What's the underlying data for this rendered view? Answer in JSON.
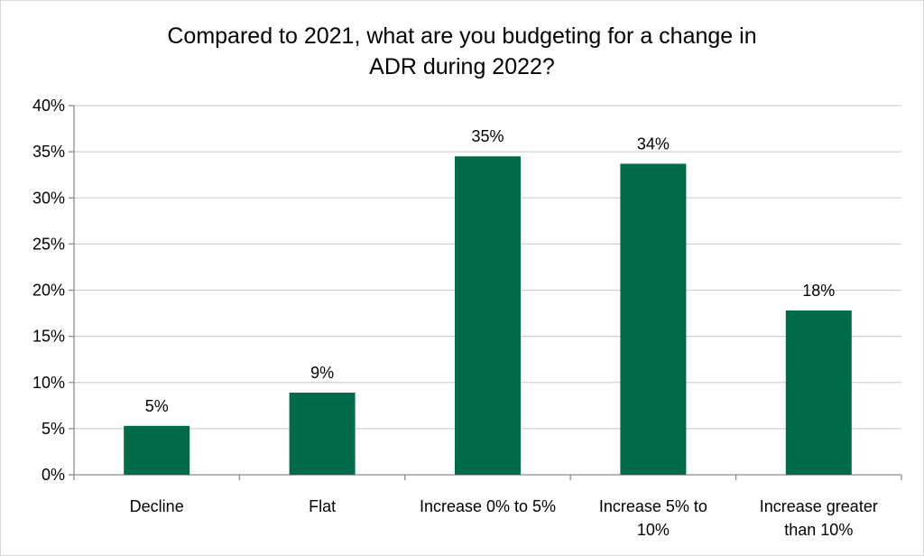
{
  "chart_data": {
    "type": "bar",
    "title": "Compared to 2021, what are you budgeting for a change in\nADR during 2022?",
    "categories": [
      "Decline",
      "Flat",
      "Increase 0% to 5%",
      "Increase 5% to 10%",
      "Increase greater than 10%"
    ],
    "category_lines": [
      [
        "Decline"
      ],
      [
        "Flat"
      ],
      [
        "Increase 0% to 5%"
      ],
      [
        "Increase 5% to",
        "10%"
      ],
      [
        "Increase greater",
        "than 10%"
      ]
    ],
    "values": [
      5.3,
      8.9,
      34.5,
      33.7,
      17.8
    ],
    "data_labels": [
      "5%",
      "9%",
      "35%",
      "34%",
      "18%"
    ],
    "ylim": [
      0,
      40
    ],
    "yticks": [
      0,
      5,
      10,
      15,
      20,
      25,
      30,
      35,
      40
    ],
    "ytick_labels": [
      "0%",
      "5%",
      "10%",
      "15%",
      "20%",
      "25%",
      "30%",
      "35%",
      "40%"
    ],
    "xlabel": "",
    "ylabel": "",
    "grid": true,
    "legend": "none",
    "bar_color": "#006b4a",
    "grid_color": "#d0d0d0"
  }
}
